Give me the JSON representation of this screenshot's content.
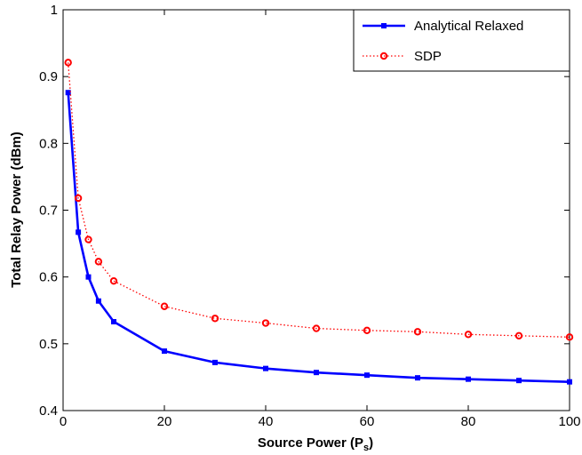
{
  "chart_data": {
    "type": "line",
    "title": "",
    "xlabel": "Source Power (P",
    "xlabel_sub": "s",
    "xlabel_close": ")",
    "ylabel": "Total Relay Power (dBm)",
    "xlim": [
      0,
      100
    ],
    "ylim": [
      0.4,
      1.0
    ],
    "x_ticks": [
      0,
      20,
      40,
      60,
      80,
      100
    ],
    "x_tick_labels": [
      "0",
      "20",
      "40",
      "60",
      "80",
      "100"
    ],
    "y_ticks": [
      0.4,
      0.5,
      0.6,
      0.7,
      0.8,
      0.9,
      1.0
    ],
    "y_tick_labels": [
      "0.4",
      "0.5",
      "0.6",
      "0.7",
      "0.8",
      "0.9",
      "1"
    ],
    "grid": false,
    "legend_position": "top-right",
    "series": [
      {
        "name": "Analytical Relaxed",
        "color": "#0000ff",
        "line_style": "solid",
        "marker": "square",
        "x": [
          1,
          3,
          5,
          7,
          10,
          20,
          30,
          40,
          50,
          60,
          70,
          80,
          90,
          100
        ],
        "values": [
          0.876,
          0.667,
          0.6,
          0.564,
          0.533,
          0.489,
          0.472,
          0.463,
          0.457,
          0.453,
          0.449,
          0.447,
          0.445,
          0.443
        ]
      },
      {
        "name": "SDP",
        "color": "#ff0000",
        "line_style": "dotted",
        "marker": "circle",
        "x": [
          1,
          3,
          5,
          7,
          10,
          20,
          30,
          40,
          50,
          60,
          70,
          80,
          90,
          100
        ],
        "values": [
          0.921,
          0.718,
          0.656,
          0.623,
          0.594,
          0.556,
          0.538,
          0.531,
          0.523,
          0.52,
          0.518,
          0.514,
          0.512,
          0.51
        ]
      }
    ]
  }
}
